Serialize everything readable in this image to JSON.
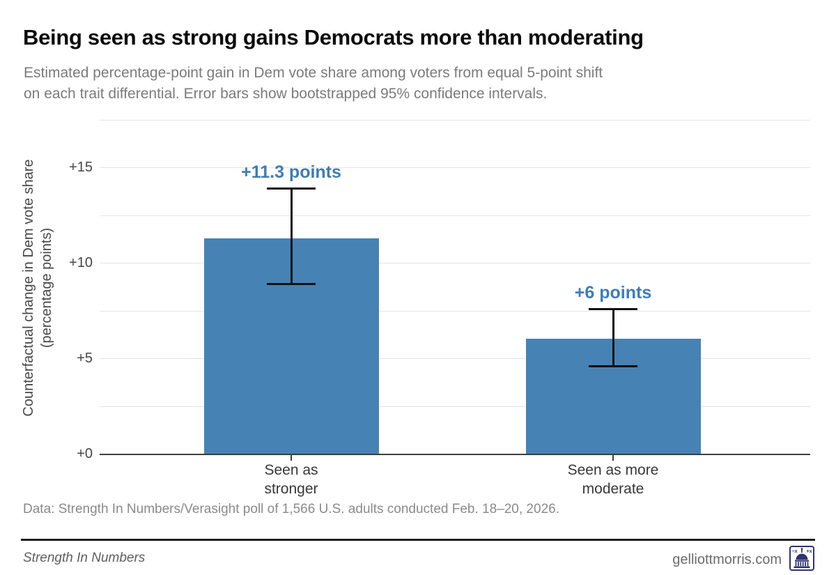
{
  "header": {
    "title": "Being seen as strong gains Democrats more than moderating",
    "subtitle_line1": "Estimated percentage-point gain in Dem vote share among voters from equal 5-point shift",
    "subtitle_line2": "on each trait differential. Error bars show bootstrapped 95% confidence intervals."
  },
  "chart_data": {
    "type": "bar",
    "title": "Being seen as strong gains Democrats more than moderating",
    "ylabel": [
      "Counterfactual change in Dem vote share",
      "(percentage points)"
    ],
    "categories": [
      [
        "Seen as",
        "stronger"
      ],
      [
        "Seen as more",
        "moderate"
      ]
    ],
    "values": [
      11.3,
      6.05
    ],
    "ci_low": [
      8.9,
      4.6
    ],
    "ci_high": [
      13.9,
      7.6
    ],
    "value_labels": [
      "+11.3 points",
      "+6 points"
    ],
    "ytick_values": [
      0,
      5,
      10,
      15
    ],
    "ytick_labels": [
      "+0",
      "+5",
      "+10",
      "+15"
    ],
    "minor_gridlines": [
      2.5,
      7.5,
      12.5,
      17.5
    ],
    "ylim": [
      0,
      17.5
    ],
    "bar_color": "#4682b4",
    "label_color": "#3e7cb7",
    "grid": "horizontal",
    "legend": "none"
  },
  "caption": {
    "text": "Data: Strength In Numbers/Verasight poll of 1,566 U.S. adults conducted Feb. 18–20, 2026."
  },
  "footer": {
    "brand": "Strength In Numbers",
    "site": "gelliottmorris.com",
    "logo": "capitol-icon",
    "logo_color": "#2f3270"
  }
}
